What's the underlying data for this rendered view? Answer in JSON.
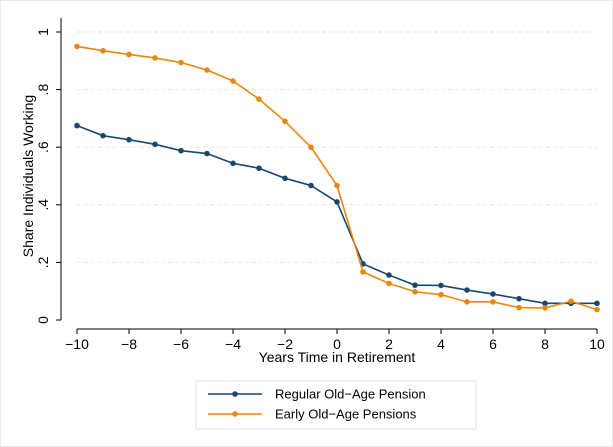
{
  "chart_data": {
    "type": "line",
    "title": "",
    "xlabel": "Years Time in Retirement",
    "ylabel": "Share Individuals Working",
    "xlim": [
      -10,
      10
    ],
    "ylim": [
      0,
      1
    ],
    "x_ticks": [
      -10,
      -8,
      -6,
      -4,
      -2,
      0,
      2,
      4,
      6,
      8,
      10
    ],
    "x_tick_labels": [
      "−10",
      "−8",
      "−6",
      "−4",
      "−2",
      "0",
      "2",
      "4",
      "6",
      "8",
      "10"
    ],
    "y_ticks": [
      0,
      0.2,
      0.4,
      0.6,
      0.8,
      1
    ],
    "y_tick_labels": [
      "0",
      ".2",
      ".4",
      ".6",
      ".8",
      "1"
    ],
    "grid": true,
    "legend_position": "bottom",
    "x": [
      -10,
      -9,
      -8,
      -7,
      -6,
      -5,
      -4,
      -3,
      -2,
      -1,
      0,
      1,
      2,
      3,
      4,
      5,
      6,
      7,
      8,
      9,
      10
    ],
    "series": [
      {
        "name": "Regular Old−Age Pension",
        "color": "#1a476f",
        "values": [
          0.675,
          0.64,
          0.626,
          0.61,
          0.588,
          0.578,
          0.544,
          0.527,
          0.492,
          0.467,
          0.41,
          0.195,
          0.156,
          0.121,
          0.12,
          0.104,
          0.09,
          0.074,
          0.058,
          0.058,
          0.058
        ]
      },
      {
        "name": "Early Old−Age Pensions",
        "color": "#e8880f",
        "values": [
          0.95,
          0.935,
          0.922,
          0.91,
          0.894,
          0.868,
          0.83,
          0.767,
          0.69,
          0.6,
          0.467,
          0.167,
          0.127,
          0.098,
          0.088,
          0.063,
          0.063,
          0.043,
          0.042,
          0.065,
          0.036
        ]
      }
    ]
  }
}
